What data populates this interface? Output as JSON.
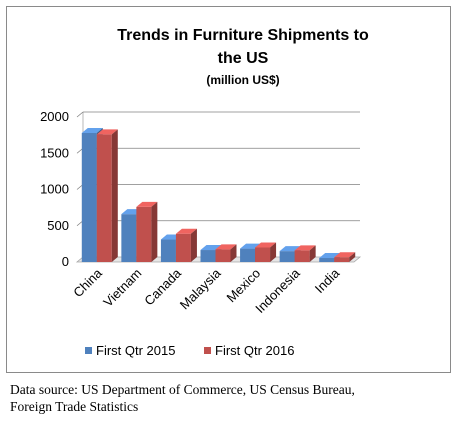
{
  "chart_data": {
    "type": "bar",
    "title_lines": [
      "Trends in Furniture Shipments to",
      "the US"
    ],
    "subtitle": "(million US$)",
    "categories": [
      "China",
      "Vietnam",
      "Canada",
      "Malaysia",
      "Mexico",
      "Indonesia",
      "India"
    ],
    "series": [
      {
        "name": "First Qtr 2015",
        "color": "#4f81bd",
        "values": [
          1780,
          660,
          310,
          165,
          185,
          150,
          55
        ]
      },
      {
        "name": "First Qtr 2016",
        "color": "#c0504d",
        "values": [
          1760,
          760,
          390,
          175,
          200,
          160,
          65
        ]
      }
    ],
    "y_ticks": [
      "0",
      "500",
      "1000",
      "1500",
      "2000"
    ],
    "ylim": [
      0,
      2000
    ],
    "grid": true,
    "legend_position": "bottom"
  },
  "source_note": {
    "line1": "Data source: US Department of Commerce, US Census Bureau,",
    "line2": "Foreign Trade Statistics"
  }
}
